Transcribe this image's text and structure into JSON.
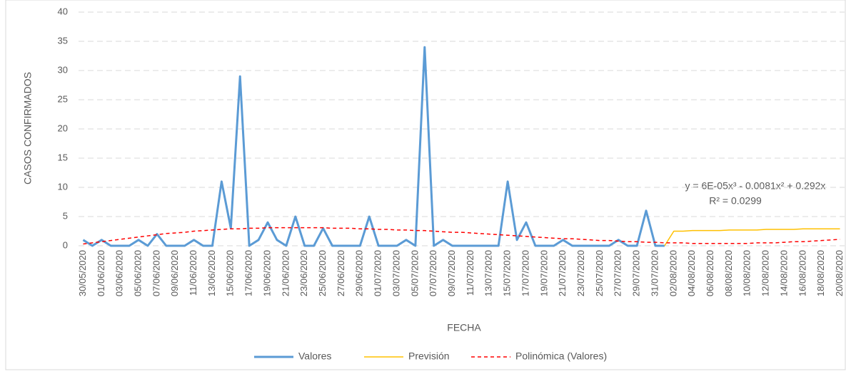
{
  "chart_data": {
    "type": "line",
    "x_label": "FECHA",
    "y_label": "CASOS CONFIRMADOS",
    "annotations": [
      "y = 6E-05x³ - 0.0081x² + 0.292x",
      "R² = 0.0299"
    ],
    "categories": [
      "30/05/2020",
      null,
      "01/06/2020",
      null,
      "03/06/2020",
      null,
      "05/06/2020",
      null,
      "07/06/2020",
      null,
      "09/06/2020",
      null,
      "11/06/2020",
      null,
      "13/06/2020",
      null,
      "15/06/2020",
      null,
      "17/06/2020",
      null,
      "19/06/2020",
      null,
      "21/06/2020",
      null,
      "23/06/2020",
      null,
      "25/06/2020",
      null,
      "27/06/2020",
      null,
      "29/06/2020",
      null,
      "01/07/2020",
      null,
      "03/07/2020",
      null,
      "05/07/2020",
      null,
      "07/07/2020",
      null,
      "09/07/2020",
      null,
      "11/07/2020",
      null,
      "13/07/2020",
      null,
      "15/07/2020",
      null,
      "17/07/2020",
      null,
      "19/07/2020",
      null,
      "21/07/2020",
      null,
      "23/07/2020",
      null,
      "25/07/2020",
      null,
      "27/07/2020",
      null,
      "29/07/2020",
      null,
      "31/07/2020",
      null,
      "02/08/2020",
      null,
      "04/08/2020",
      null,
      "06/08/2020",
      null,
      "08/08/2020",
      null,
      "10/08/2020",
      null,
      "12/08/2020",
      null,
      "14/08/2020",
      null,
      "16/08/2020",
      null,
      "18/08/2020",
      null,
      "20/08/2020"
    ],
    "series": [
      {
        "name": "Valores",
        "color": "#5b9bd5",
        "style": "solid",
        "values": [
          1,
          0,
          1,
          0,
          0,
          0,
          1,
          0,
          2,
          0,
          0,
          0,
          1,
          0,
          0,
          11,
          3,
          29,
          0,
          1,
          4,
          1,
          0,
          5,
          0,
          0,
          3,
          0,
          0,
          0,
          0,
          5,
          0,
          0,
          0,
          1,
          0,
          34,
          0,
          1,
          0,
          0,
          0,
          0,
          0,
          0,
          11,
          1,
          4,
          0,
          0,
          0,
          1,
          0,
          0,
          0,
          0,
          0,
          1,
          0,
          0,
          6,
          0,
          0,
          null,
          null,
          null,
          null,
          null,
          null,
          null,
          null,
          null,
          null,
          null,
          null,
          null,
          null,
          null,
          null,
          null,
          null,
          null
        ]
      },
      {
        "name": "Previsión",
        "color": "#ffc000",
        "style": "solid",
        "values": [
          null,
          null,
          null,
          null,
          null,
          null,
          null,
          null,
          null,
          null,
          null,
          null,
          null,
          null,
          null,
          null,
          null,
          null,
          null,
          null,
          null,
          null,
          null,
          null,
          null,
          null,
          null,
          null,
          null,
          null,
          null,
          null,
          null,
          null,
          null,
          null,
          null,
          null,
          null,
          null,
          null,
          null,
          null,
          null,
          null,
          null,
          null,
          null,
          null,
          null,
          null,
          null,
          null,
          null,
          null,
          null,
          null,
          null,
          null,
          null,
          null,
          null,
          null,
          0,
          2.5,
          2.5,
          2.6,
          2.6,
          2.6,
          2.6,
          2.7,
          2.7,
          2.7,
          2.7,
          2.8,
          2.8,
          2.8,
          2.8,
          2.9,
          2.9,
          2.9,
          2.9,
          2.9
        ]
      },
      {
        "name": "Polinómica (Valores)",
        "color": "#ff0000",
        "style": "dashed",
        "values": [
          0.3,
          0.5,
          0.7,
          0.9,
          1.1,
          1.3,
          1.5,
          1.7,
          1.9,
          2.1,
          2.2,
          2.3,
          2.5,
          2.6,
          2.7,
          2.8,
          2.9,
          2.9,
          3.0,
          3.0,
          3.1,
          3.1,
          3.1,
          3.1,
          3.1,
          3.1,
          3.1,
          3.0,
          3.0,
          3.0,
          2.9,
          2.9,
          2.8,
          2.8,
          2.7,
          2.7,
          2.6,
          2.6,
          2.5,
          2.4,
          2.3,
          2.3,
          2.2,
          2.1,
          2.0,
          1.9,
          1.8,
          1.7,
          1.6,
          1.5,
          1.4,
          1.3,
          1.2,
          1.2,
          1.1,
          1.0,
          0.9,
          0.9,
          0.8,
          0.7,
          0.7,
          0.6,
          0.6,
          0.5,
          0.5,
          0.5,
          0.4,
          0.4,
          0.4,
          0.4,
          0.4,
          0.4,
          0.4,
          0.5,
          0.5,
          0.5,
          0.6,
          0.7,
          0.7,
          0.8,
          0.9,
          1.0,
          1.1
        ]
      }
    ],
    "ylim": [
      0,
      40
    ],
    "yticks": [
      0,
      5,
      10,
      15,
      20,
      25,
      30,
      35,
      40
    ],
    "grid": true,
    "legend": "bottom"
  }
}
